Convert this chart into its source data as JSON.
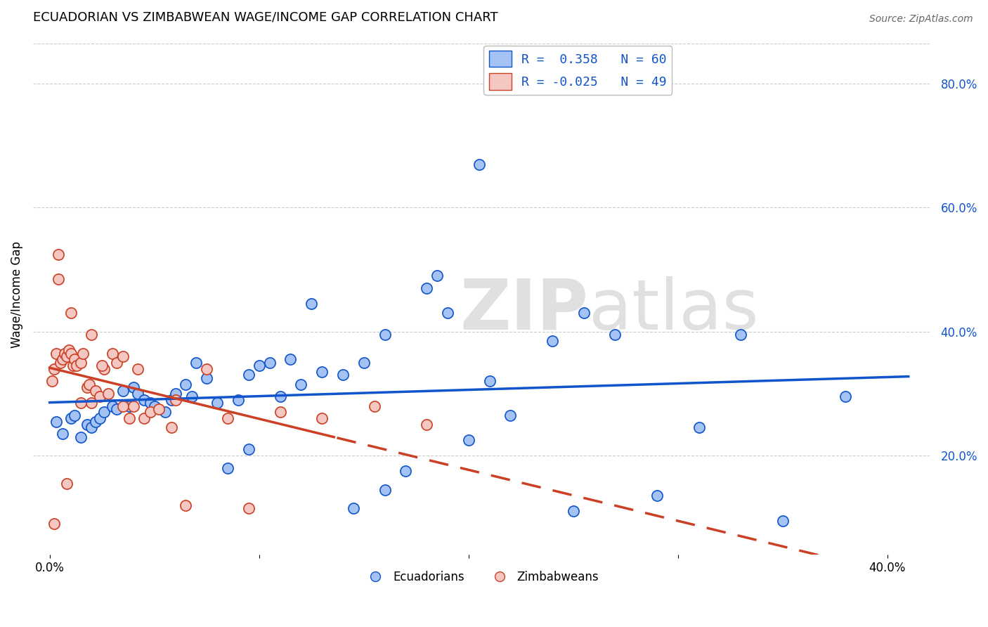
{
  "title": "ECUADORIAN VS ZIMBABWEAN WAGE/INCOME GAP CORRELATION CHART",
  "source": "Source: ZipAtlas.com",
  "ylabel": "Wage/Income Gap",
  "xlabel_ticks": [
    "0.0%",
    "",
    "",
    "",
    "40.0%"
  ],
  "xlabel_vals": [
    0.0,
    0.1,
    0.2,
    0.3,
    0.4
  ],
  "ylabel_ticks_right": [
    "20.0%",
    "40.0%",
    "60.0%",
    "80.0%"
  ],
  "ylabel_vals_right": [
    0.2,
    0.4,
    0.6,
    0.8
  ],
  "xlim": [
    -0.008,
    0.42
  ],
  "ylim": [
    0.04,
    0.88
  ],
  "blue_color": "#a4c2f4",
  "pink_color": "#f4c7c3",
  "blue_line_color": "#1155cc",
  "pink_line_color": "#cc4125",
  "legend_blue_label": "R =  0.358   N = 60",
  "legend_pink_label": "R = -0.025   N = 49",
  "legend_bottom_blue": "Ecuadorians",
  "legend_bottom_pink": "Zimbabweans",
  "background_color": "#ffffff",
  "grid_color": "#cccccc",
  "blue_scatter_x": [
    0.003,
    0.006,
    0.01,
    0.012,
    0.015,
    0.018,
    0.02,
    0.022,
    0.024,
    0.026,
    0.03,
    0.032,
    0.035,
    0.038,
    0.04,
    0.042,
    0.045,
    0.048,
    0.05,
    0.055,
    0.058,
    0.06,
    0.065,
    0.068,
    0.07,
    0.075,
    0.08,
    0.085,
    0.09,
    0.095,
    0.1,
    0.105,
    0.11,
    0.115,
    0.12,
    0.125,
    0.13,
    0.14,
    0.15,
    0.16,
    0.17,
    0.18,
    0.19,
    0.2,
    0.21,
    0.22,
    0.24,
    0.255,
    0.27,
    0.29,
    0.185,
    0.145,
    0.095,
    0.31,
    0.16,
    0.25,
    0.33,
    0.35,
    0.38,
    0.205
  ],
  "blue_scatter_y": [
    0.255,
    0.235,
    0.26,
    0.265,
    0.23,
    0.25,
    0.245,
    0.255,
    0.26,
    0.27,
    0.28,
    0.275,
    0.305,
    0.28,
    0.31,
    0.3,
    0.29,
    0.285,
    0.28,
    0.27,
    0.29,
    0.3,
    0.315,
    0.295,
    0.35,
    0.325,
    0.285,
    0.18,
    0.29,
    0.33,
    0.345,
    0.35,
    0.295,
    0.355,
    0.315,
    0.445,
    0.335,
    0.33,
    0.35,
    0.145,
    0.175,
    0.47,
    0.43,
    0.225,
    0.32,
    0.265,
    0.385,
    0.43,
    0.395,
    0.135,
    0.49,
    0.115,
    0.21,
    0.245,
    0.395,
    0.11,
    0.395,
    0.095,
    0.295,
    0.67
  ],
  "pink_scatter_x": [
    0.001,
    0.002,
    0.003,
    0.004,
    0.005,
    0.006,
    0.007,
    0.008,
    0.009,
    0.01,
    0.011,
    0.012,
    0.013,
    0.015,
    0.016,
    0.018,
    0.019,
    0.02,
    0.022,
    0.024,
    0.026,
    0.028,
    0.03,
    0.032,
    0.035,
    0.038,
    0.04,
    0.042,
    0.045,
    0.048,
    0.052,
    0.058,
    0.065,
    0.075,
    0.085,
    0.095,
    0.11,
    0.13,
    0.155,
    0.18,
    0.002,
    0.008,
    0.015,
    0.025,
    0.004,
    0.01,
    0.02,
    0.035,
    0.06
  ],
  "pink_scatter_y": [
    0.32,
    0.34,
    0.365,
    0.485,
    0.35,
    0.355,
    0.365,
    0.36,
    0.37,
    0.365,
    0.345,
    0.355,
    0.345,
    0.35,
    0.365,
    0.31,
    0.315,
    0.285,
    0.305,
    0.295,
    0.34,
    0.3,
    0.365,
    0.35,
    0.28,
    0.26,
    0.28,
    0.34,
    0.26,
    0.27,
    0.275,
    0.245,
    0.12,
    0.34,
    0.26,
    0.115,
    0.27,
    0.26,
    0.28,
    0.25,
    0.09,
    0.155,
    0.285,
    0.345,
    0.525,
    0.43,
    0.395,
    0.36,
    0.29
  ]
}
